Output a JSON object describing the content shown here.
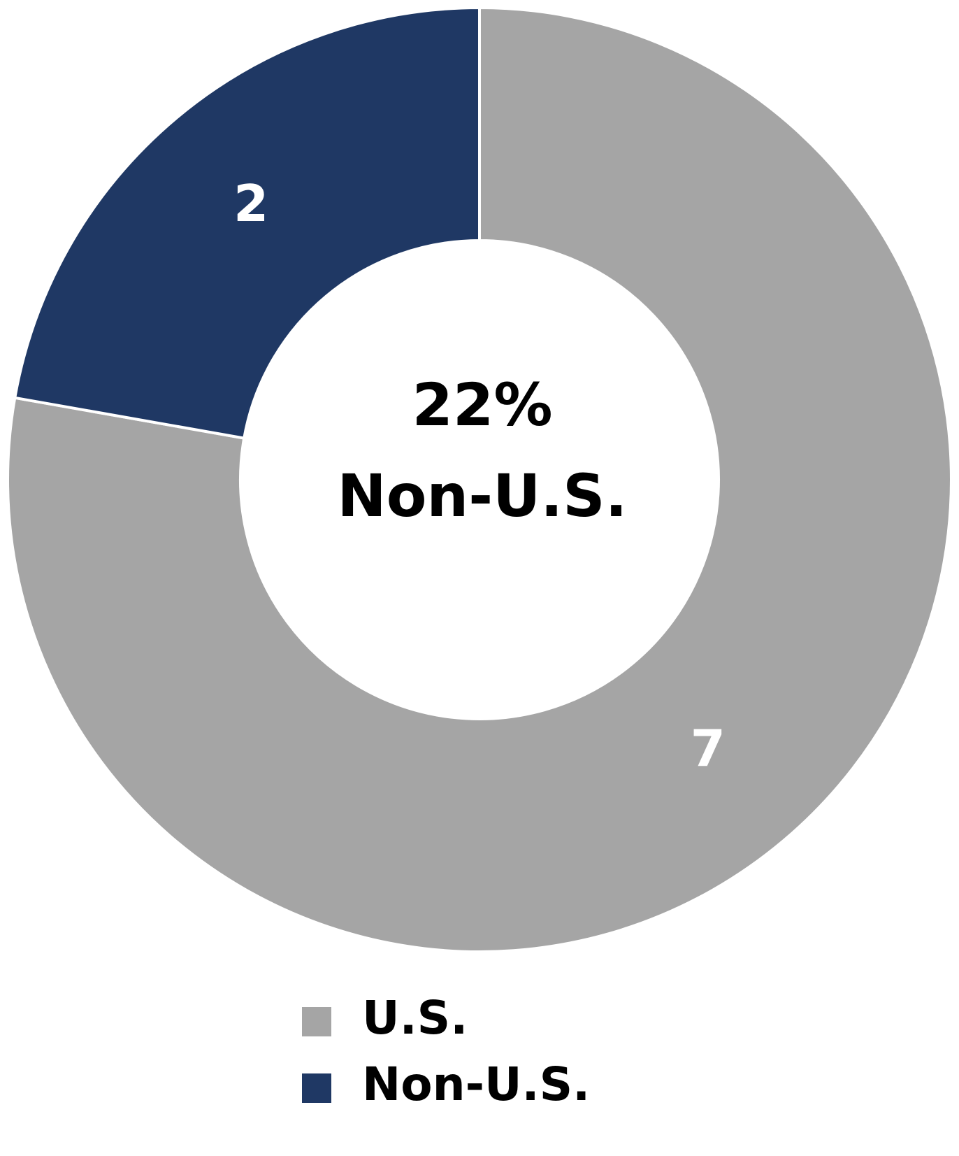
{
  "chart_data": {
    "type": "donut",
    "categories": [
      "U.S.",
      "Non-U.S."
    ],
    "values": [
      7,
      2
    ],
    "colors": [
      "#a5a5a5",
      "#1f3864"
    ],
    "center_text": [
      "22%",
      "Non-U.S."
    ],
    "legend": "bottom"
  }
}
